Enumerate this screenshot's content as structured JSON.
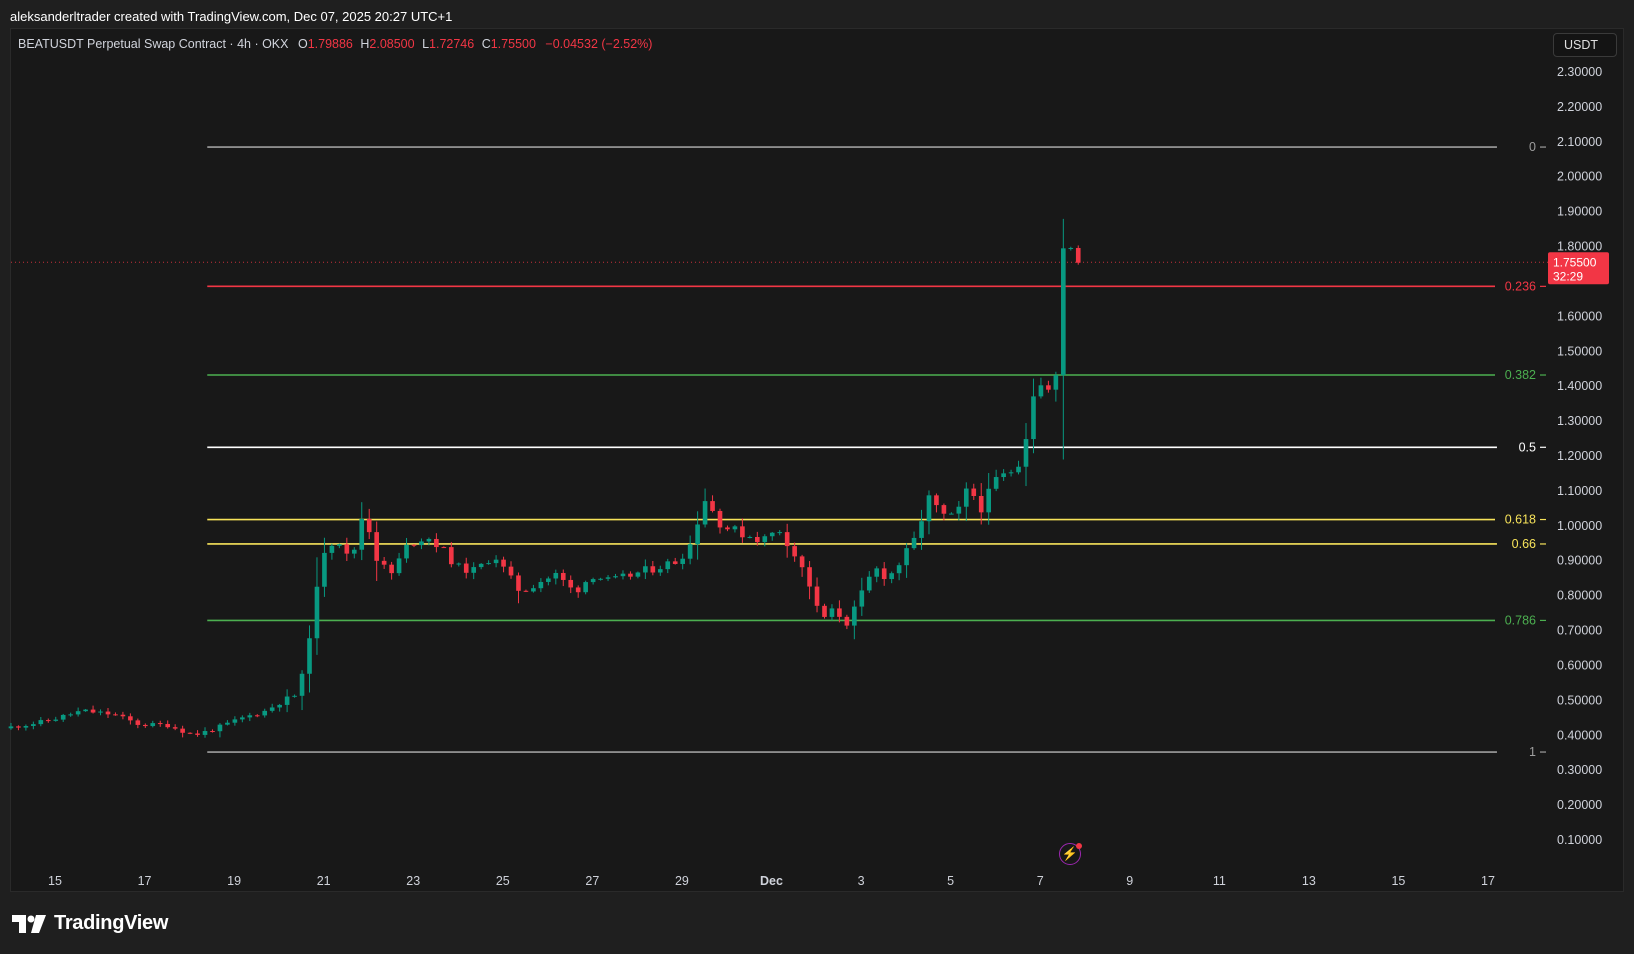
{
  "header": {
    "attribution": "aleksanderltrader created with TradingView.com, Dec 07, 2025 20:27 UTC+1"
  },
  "legend": {
    "symbol": "BEATUSDT Perpetual Swap Contract · 4h · OKX",
    "open_label": "O",
    "open": "1.79886",
    "high_label": "H",
    "high": "2.08500",
    "low_label": "L",
    "low": "1.72746",
    "close_label": "C",
    "close": "1.75500",
    "change": "−0.04532 (−2.52%)"
  },
  "currency_button": "USDT",
  "brand": "TradingView",
  "icons": {
    "logo": "tradingview-logo-icon",
    "alert": "lightning-icon"
  },
  "colors": {
    "up": "#089981",
    "down": "#f23645",
    "background": "#181818"
  },
  "chart_data": {
    "type": "candlestick",
    "timeframe": "4h",
    "y_axis": {
      "ticks": [
        "2.30000",
        "2.20000",
        "2.10000",
        "2.00000",
        "1.90000",
        "1.80000",
        "1.60000",
        "1.50000",
        "1.40000",
        "1.30000",
        "1.20000",
        "1.10000",
        "1.00000",
        "0.90000",
        "0.80000",
        "0.70000",
        "0.60000",
        "0.50000",
        "0.40000",
        "0.30000",
        "0.20000",
        "0.10000"
      ],
      "tick_values": [
        2.3,
        2.2,
        2.1,
        2.0,
        1.9,
        1.8,
        1.6,
        1.5,
        1.4,
        1.3,
        1.2,
        1.1,
        1.0,
        0.9,
        0.8,
        0.7,
        0.6,
        0.5,
        0.4,
        0.3,
        0.2,
        0.1
      ],
      "range": [
        0.05,
        2.35
      ]
    },
    "x_axis": {
      "labels": [
        "15",
        "17",
        "19",
        "21",
        "23",
        "25",
        "27",
        "29",
        "Dec",
        "3",
        "5",
        "7",
        "9",
        "11",
        "13",
        "15",
        "17"
      ],
      "label_days": [
        15,
        17,
        19,
        21,
        23,
        25,
        27,
        29,
        31,
        33,
        35,
        37,
        39,
        41,
        43,
        45,
        47
      ],
      "range_days": [
        13.8,
        47.5
      ]
    },
    "last_price": {
      "value": 1.755,
      "label": "1.75500",
      "countdown": "32:29"
    },
    "fibonacci": {
      "start_day": 18.4,
      "end_day": 47.2,
      "levels": [
        {
          "label": "0",
          "value": 2.085,
          "color": "#9e9e9e"
        },
        {
          "label": "0.236",
          "value": 1.686,
          "color": "#f23645"
        },
        {
          "label": "0.382",
          "value": 1.432,
          "color": "#4caf50"
        },
        {
          "label": "0.5",
          "value": 1.225,
          "color": "#ffffff"
        },
        {
          "label": "0.618",
          "value": 1.018,
          "color": "#f7e35a"
        },
        {
          "label": "0.66",
          "value": 0.948,
          "color": "#f7e35a"
        },
        {
          "label": "0.786",
          "value": 0.729,
          "color": "#4caf50"
        },
        {
          "label": "1",
          "value": 0.352,
          "color": "#9e9e9e"
        }
      ]
    },
    "anchors": [
      [
        13.85,
        0.42
      ],
      [
        14.8,
        0.44
      ],
      [
        15.6,
        0.47
      ],
      [
        16.3,
        0.46
      ],
      [
        16.9,
        0.43
      ],
      [
        17.5,
        0.43
      ],
      [
        18.1,
        0.4
      ],
      [
        18.6,
        0.42
      ],
      [
        19.2,
        0.45
      ],
      [
        19.7,
        0.47
      ],
      [
        20.1,
        0.5
      ],
      [
        20.45,
        0.52
      ],
      [
        20.7,
        0.7
      ],
      [
        21.0,
        0.93
      ],
      [
        21.3,
        0.97
      ],
      [
        21.6,
        0.89
      ],
      [
        21.9,
        1.05
      ],
      [
        22.2,
        0.9
      ],
      [
        22.5,
        0.86
      ],
      [
        22.9,
        0.95
      ],
      [
        23.3,
        0.97
      ],
      [
        23.6,
        0.94
      ],
      [
        24.0,
        0.88
      ],
      [
        24.4,
        0.87
      ],
      [
        24.8,
        0.92
      ],
      [
        25.1,
        0.86
      ],
      [
        25.4,
        0.81
      ],
      [
        25.8,
        0.84
      ],
      [
        26.2,
        0.86
      ],
      [
        26.6,
        0.81
      ],
      [
        27.0,
        0.86
      ],
      [
        27.4,
        0.84
      ],
      [
        27.9,
        0.86
      ],
      [
        28.4,
        0.88
      ],
      [
        28.9,
        0.9
      ],
      [
        29.2,
        0.95
      ],
      [
        29.5,
        1.08
      ],
      [
        29.9,
        1.0
      ],
      [
        30.3,
        0.98
      ],
      [
        30.8,
        0.96
      ],
      [
        31.2,
        0.99
      ],
      [
        31.5,
        0.92
      ],
      [
        31.8,
        0.85
      ],
      [
        32.1,
        0.73
      ],
      [
        32.4,
        0.76
      ],
      [
        32.7,
        0.72
      ],
      [
        33.0,
        0.8
      ],
      [
        33.3,
        0.88
      ],
      [
        33.6,
        0.85
      ],
      [
        33.9,
        0.9
      ],
      [
        34.2,
        0.96
      ],
      [
        34.5,
        1.08
      ],
      [
        34.8,
        1.03
      ],
      [
        35.1,
        1.02
      ],
      [
        35.4,
        1.11
      ],
      [
        35.7,
        1.05
      ],
      [
        36.0,
        1.13
      ],
      [
        36.3,
        1.15
      ],
      [
        36.6,
        1.2
      ],
      [
        36.9,
        1.42
      ],
      [
        37.15,
        1.38
      ],
      [
        37.35,
        1.42
      ],
      [
        37.45,
        1.75
      ],
      [
        37.6,
        1.85
      ],
      [
        37.75,
        1.78
      ],
      [
        37.9,
        1.755
      ]
    ]
  }
}
